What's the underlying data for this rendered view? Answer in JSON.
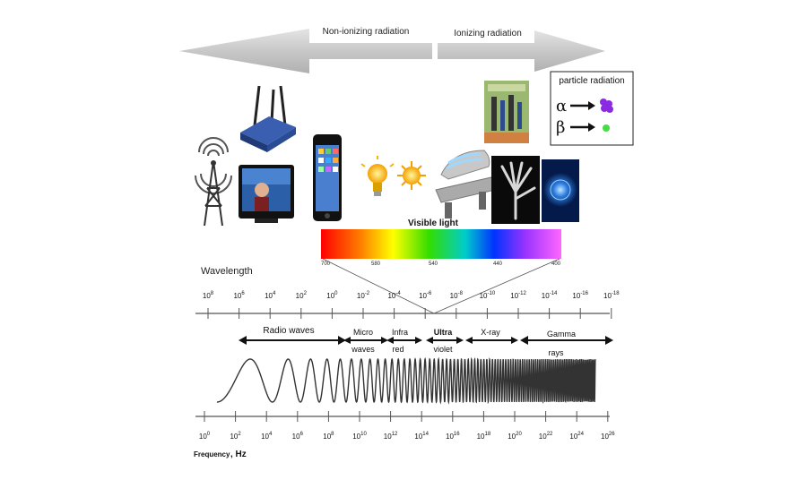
{
  "radiation_arrows": {
    "non_ionizing": "Non-ionizing radiation",
    "ionizing": "Ionizing radiation"
  },
  "particle_box": {
    "title": "particle radiation",
    "alpha": "α",
    "beta": "β",
    "alpha_color": "#8a2be2",
    "beta_color": "#44dd44"
  },
  "visible_light": {
    "label": "Visible light",
    "ticks": [
      "700",
      "580",
      "540",
      "440",
      "400"
    ],
    "colors": [
      "#ff0000",
      "#ff8800",
      "#ffff00",
      "#00dd00",
      "#00cccc",
      "#0000ff",
      "#9933ff",
      "#ff66ff"
    ]
  },
  "wavelength": {
    "label": "Wavelength",
    "exponents": [
      "8",
      "6",
      "4",
      "2",
      "0",
      "-2",
      "-4",
      "-6",
      "-8",
      "-10",
      "-12",
      "-14",
      "-16",
      "-18"
    ]
  },
  "bands": {
    "radio": "Radio waves",
    "micro_1": "Micro",
    "micro_2": "waves",
    "infra_1": "Infra",
    "infra_2": "red",
    "ultra_1": "Ultra",
    "ultra_2": "violet",
    "xray": "X-ray",
    "gamma_1": "Gamma",
    "gamma_2": "rays"
  },
  "frequency": {
    "label": "Frequency",
    "unit": ", Hz",
    "exponents": [
      "0",
      "2",
      "4",
      "6",
      "8",
      "10",
      "12",
      "14",
      "16",
      "18",
      "20",
      "22",
      "24",
      "26"
    ]
  },
  "icons": [
    "radio-tower-icon",
    "wifi-router-icon",
    "television-icon",
    "smartphone-icon",
    "light-bulb-icon",
    "sun-icon",
    "tanning-bed-icon",
    "xray-hand-icon",
    "radioactive-glow-icon",
    "food-irradiation-icon"
  ]
}
